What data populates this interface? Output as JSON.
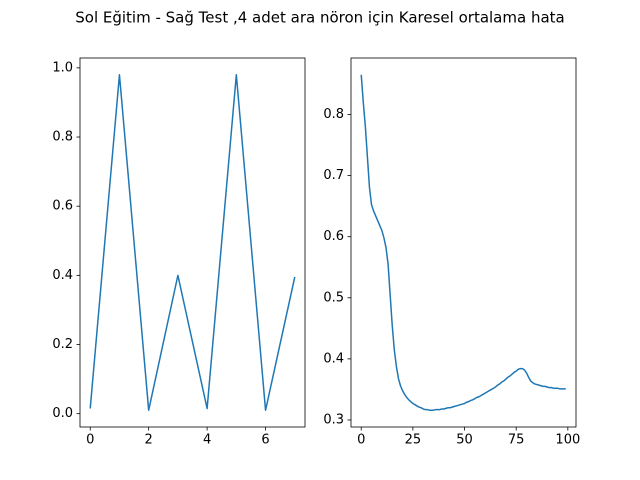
{
  "title": "Sol Eğitim - Sağ Test ,4 adet ara nöron için Karesel ortalama hata",
  "chart_data": [
    {
      "type": "line",
      "color": "#1f77b4",
      "x": [
        0,
        1,
        2,
        3,
        4,
        5,
        6,
        7
      ],
      "values": [
        0.015,
        0.98,
        0.01,
        0.4,
        0.015,
        0.98,
        0.01,
        0.395
      ],
      "xlim": [
        -0.35,
        7.35
      ],
      "ylim": [
        -0.0385,
        1.0285
      ],
      "xticks": [
        0,
        2,
        4,
        6
      ],
      "yticks": [
        {
          "value": 0,
          "label": "0.0"
        },
        0.2,
        0.4,
        0.6,
        0.8,
        {
          "value": 1,
          "label": "1.0"
        }
      ]
    },
    {
      "type": "line",
      "color": "#1f77b4",
      "x": [
        0,
        1,
        2,
        3,
        4,
        5,
        6,
        7,
        8,
        9,
        10,
        11,
        12,
        13,
        14,
        15,
        16,
        17,
        18,
        19,
        20,
        21,
        22,
        23,
        24,
        25,
        26,
        27,
        28,
        29,
        30,
        31,
        32,
        33,
        34,
        35,
        36,
        37,
        38,
        39,
        40,
        41,
        42,
        43,
        44,
        45,
        46,
        47,
        48,
        49,
        50,
        51,
        52,
        53,
        54,
        55,
        56,
        57,
        58,
        59,
        60,
        61,
        62,
        63,
        64,
        65,
        66,
        67,
        68,
        69,
        70,
        71,
        72,
        73,
        74,
        75,
        76,
        77,
        78,
        79,
        80,
        81,
        82,
        83,
        84,
        85,
        86,
        87,
        88,
        89,
        90,
        91,
        92,
        93,
        94,
        95,
        96,
        97,
        98,
        99
      ],
      "values": [
        0.865,
        0.82,
        0.78,
        0.73,
        0.68,
        0.652,
        0.642,
        0.634,
        0.626,
        0.618,
        0.61,
        0.598,
        0.582,
        0.555,
        0.505,
        0.455,
        0.415,
        0.388,
        0.368,
        0.356,
        0.348,
        0.342,
        0.337,
        0.333,
        0.33,
        0.327,
        0.325,
        0.323,
        0.321,
        0.32,
        0.318,
        0.317,
        0.317,
        0.316,
        0.316,
        0.316,
        0.317,
        0.317,
        0.317,
        0.318,
        0.318,
        0.319,
        0.32,
        0.32,
        0.321,
        0.322,
        0.323,
        0.324,
        0.325,
        0.326,
        0.327,
        0.329,
        0.33,
        0.332,
        0.333,
        0.335,
        0.337,
        0.338,
        0.34,
        0.342,
        0.344,
        0.346,
        0.348,
        0.35,
        0.352,
        0.354,
        0.357,
        0.359,
        0.362,
        0.364,
        0.367,
        0.37,
        0.372,
        0.375,
        0.378,
        0.38,
        0.383,
        0.384,
        0.384,
        0.382,
        0.377,
        0.37,
        0.364,
        0.361,
        0.359,
        0.358,
        0.357,
        0.356,
        0.355,
        0.355,
        0.354,
        0.353,
        0.353,
        0.352,
        0.352,
        0.352,
        0.351,
        0.351,
        0.351,
        0.351
      ],
      "xlim": [
        -4.95,
        103.95
      ],
      "ylim": [
        0.2885,
        0.8925
      ],
      "xticks": [
        0,
        25,
        50,
        75,
        100
      ],
      "yticks": [
        0.3,
        0.4,
        0.5,
        0.6,
        0.7,
        0.8
      ]
    }
  ]
}
